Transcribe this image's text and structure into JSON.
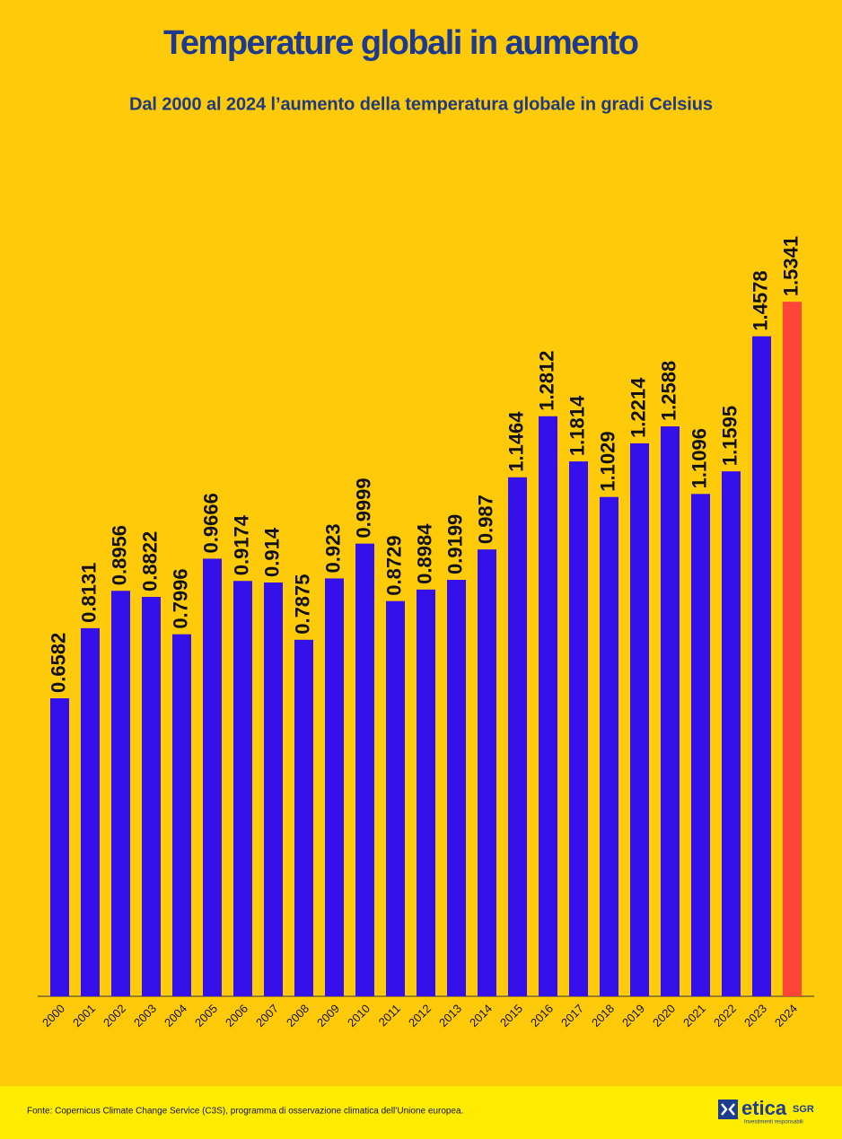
{
  "chart_data": {
    "type": "bar",
    "title": "Temperature globali in aumento",
    "subtitle": "Dal 2000 al 2024 l’aumento della temperatura globale in gradi Celsius",
    "categories": [
      "2000",
      "2001",
      "2002",
      "2003",
      "2004",
      "2005",
      "2006",
      "2007",
      "2008",
      "2009",
      "2010",
      "2011",
      "2012",
      "2013",
      "2014",
      "2015",
      "2016",
      "2017",
      "2018",
      "2019",
      "2020",
      "2021",
      "2022",
      "2023",
      "2024"
    ],
    "values": [
      0.6582,
      0.8131,
      0.8956,
      0.8822,
      0.7996,
      0.9666,
      0.9174,
      0.914,
      0.7875,
      0.923,
      0.9999,
      0.8729,
      0.8984,
      0.9199,
      0.987,
      1.1464,
      1.2812,
      1.1814,
      1.1029,
      1.2214,
      1.2588,
      1.1096,
      1.1595,
      1.4578,
      1.5341
    ],
    "colors": [
      "#3410ea",
      "#3410ea",
      "#3410ea",
      "#3410ea",
      "#3410ea",
      "#3410ea",
      "#3410ea",
      "#3410ea",
      "#3410ea",
      "#3410ea",
      "#3410ea",
      "#3410ea",
      "#3410ea",
      "#3410ea",
      "#3410ea",
      "#3410ea",
      "#3410ea",
      "#3410ea",
      "#3410ea",
      "#3410ea",
      "#3410ea",
      "#3410ea",
      "#3410ea",
      "#3410ea",
      "#ff4438"
    ],
    "source": "Fonte: Copernicus Climate Change Service (C3S), programma di osservazione climatica dell’Unione europea.",
    "logo": {
      "name": "etica",
      "suffix": "SGR",
      "tagline": "Investimenti responsabili"
    }
  }
}
